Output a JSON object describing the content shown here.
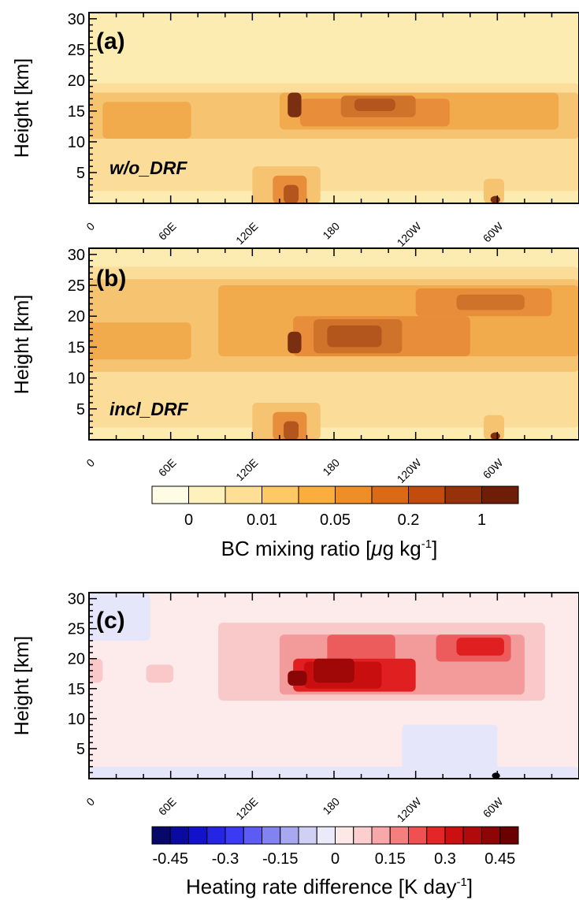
{
  "chart_data": [
    {
      "panel_label": "(a)",
      "annotation": "w/o_DRF",
      "type": "heatmap",
      "ylabel": "Height [km]",
      "yticks": [
        5,
        10,
        15,
        20,
        25,
        30
      ],
      "ylim": [
        0,
        31
      ],
      "xticks": [
        "0",
        "60E",
        "120E",
        "180",
        "120W",
        "60W"
      ],
      "xlim": [
        0,
        360
      ],
      "layers": [
        {
          "x0": 0,
          "x1": 360,
          "y0": 0,
          "y1": 31,
          "level": 2
        },
        {
          "x0": 0,
          "x1": 360,
          "y0": 2,
          "y1": 19.5,
          "level": 3
        },
        {
          "x0": 0,
          "x1": 360,
          "y0": 10.5,
          "y1": 18,
          "level": 4
        },
        {
          "x0": 10,
          "x1": 75,
          "y0": 10.5,
          "y1": 16.5,
          "level": 5
        },
        {
          "x0": 140,
          "x1": 345,
          "y0": 12,
          "y1": 18,
          "level": 5
        },
        {
          "x0": 155,
          "x1": 265,
          "y0": 12.5,
          "y1": 17,
          "level": 6
        },
        {
          "x0": 185,
          "x1": 240,
          "y0": 14,
          "y1": 17.5,
          "level": 7
        },
        {
          "x0": 195,
          "x1": 225,
          "y0": 15,
          "y1": 17,
          "level": 8
        },
        {
          "x0": 146,
          "x1": 156,
          "y0": 14,
          "y1": 18,
          "level": 9
        },
        {
          "x0": 120,
          "x1": 170,
          "y0": 0,
          "y1": 6,
          "level": 4
        },
        {
          "x0": 135,
          "x1": 160,
          "y0": 0,
          "y1": 4.5,
          "level": 6
        },
        {
          "x0": 143,
          "x1": 154,
          "y0": 0,
          "y1": 3,
          "level": 8
        },
        {
          "x0": 290,
          "x1": 305,
          "y0": 0,
          "y1": 4,
          "level": 4
        },
        {
          "x0": 295,
          "x1": 302,
          "y0": 0,
          "y1": 1.2,
          "level": 9
        }
      ]
    },
    {
      "panel_label": "(b)",
      "annotation": "incl_DRF",
      "type": "heatmap",
      "ylabel": "Height [km]",
      "yticks": [
        5,
        10,
        15,
        20,
        25,
        30
      ],
      "ylim": [
        0,
        31
      ],
      "xticks": [
        "0",
        "60E",
        "120E",
        "180",
        "120W",
        "60W"
      ],
      "xlim": [
        0,
        360
      ],
      "layers": [
        {
          "x0": 0,
          "x1": 360,
          "y0": 0,
          "y1": 31,
          "level": 2
        },
        {
          "x0": 0,
          "x1": 360,
          "y0": 2,
          "y1": 28,
          "level": 3
        },
        {
          "x0": 0,
          "x1": 360,
          "y0": 11,
          "y1": 26,
          "level": 4
        },
        {
          "x0": 0,
          "x1": 75,
          "y0": 13,
          "y1": 19,
          "level": 5
        },
        {
          "x0": 95,
          "x1": 360,
          "y0": 13.5,
          "y1": 25,
          "level": 5
        },
        {
          "x0": 150,
          "x1": 280,
          "y0": 13.5,
          "y1": 20,
          "level": 6
        },
        {
          "x0": 240,
          "x1": 340,
          "y0": 20,
          "y1": 24.5,
          "level": 6
        },
        {
          "x0": 270,
          "x1": 320,
          "y0": 21,
          "y1": 23.5,
          "level": 7
        },
        {
          "x0": 165,
          "x1": 230,
          "y0": 14,
          "y1": 19.5,
          "level": 7
        },
        {
          "x0": 175,
          "x1": 215,
          "y0": 15,
          "y1": 18.5,
          "level": 8
        },
        {
          "x0": 146,
          "x1": 156,
          "y0": 14,
          "y1": 17.5,
          "level": 9
        },
        {
          "x0": 120,
          "x1": 170,
          "y0": 0,
          "y1": 6,
          "level": 4
        },
        {
          "x0": 135,
          "x1": 160,
          "y0": 0,
          "y1": 4.5,
          "level": 6
        },
        {
          "x0": 143,
          "x1": 154,
          "y0": 0,
          "y1": 3,
          "level": 8
        },
        {
          "x0": 290,
          "x1": 305,
          "y0": 0,
          "y1": 4,
          "level": 4
        },
        {
          "x0": 295,
          "x1": 302,
          "y0": 0,
          "y1": 1.2,
          "level": 9
        }
      ]
    },
    {
      "panel_label": "(c)",
      "annotation": "",
      "type": "heatmap",
      "ylabel": "Height [km]",
      "yticks": [
        5,
        10,
        15,
        20,
        25,
        30
      ],
      "ylim": [
        0,
        31
      ],
      "xticks": [
        "0",
        "60E",
        "120E",
        "180",
        "120W",
        "60W"
      ],
      "xlim": [
        0,
        360
      ],
      "layers": [
        {
          "x0": 0,
          "x1": 360,
          "y0": 0,
          "y1": 31,
          "level": 9
        },
        {
          "x0": 0,
          "x1": 360,
          "y0": 0,
          "y1": 2,
          "level": 8
        },
        {
          "x0": 230,
          "x1": 300,
          "y0": 1,
          "y1": 9,
          "level": 8
        },
        {
          "x0": 0,
          "x1": 45,
          "y0": 23,
          "y1": 31,
          "level": 8
        },
        {
          "x0": 95,
          "x1": 335,
          "y0": 13,
          "y1": 26,
          "level": 10
        },
        {
          "x0": 0,
          "x1": 10,
          "y0": 16,
          "y1": 20,
          "level": 10
        },
        {
          "x0": 42,
          "x1": 62,
          "y0": 16,
          "y1": 19,
          "level": 10
        },
        {
          "x0": 140,
          "x1": 320,
          "y0": 14,
          "y1": 24,
          "level": 11
        },
        {
          "x0": 175,
          "x1": 225,
          "y0": 19,
          "y1": 24,
          "level": 12
        },
        {
          "x0": 255,
          "x1": 310,
          "y0": 19.5,
          "y1": 24,
          "level": 12
        },
        {
          "x0": 150,
          "x1": 240,
          "y0": 14.5,
          "y1": 20,
          "level": 13
        },
        {
          "x0": 270,
          "x1": 305,
          "y0": 20.5,
          "y1": 23.5,
          "level": 13
        },
        {
          "x0": 158,
          "x1": 215,
          "y0": 15,
          "y1": 19.5,
          "level": 14
        },
        {
          "x0": 165,
          "x1": 195,
          "y0": 16,
          "y1": 20,
          "level": 15
        },
        {
          "x0": 146,
          "x1": 160,
          "y0": 15.5,
          "y1": 18,
          "level": 16
        },
        {
          "x0": 296,
          "x1": 302,
          "y0": 0,
          "y1": 1,
          "level": 17
        }
      ]
    }
  ],
  "colorbars": [
    {
      "title": "BC mixing ratio [",
      "mu": "μ",
      "title_rest": "g kg",
      "sup": "-1",
      "close": "]",
      "colors": [
        "#fffce6",
        "#fff1bc",
        "#ffdf95",
        "#fec964",
        "#fbad3d",
        "#ef8d26",
        "#db6a16",
        "#c14c0d",
        "#963109",
        "#6e1d06"
      ],
      "labels": [
        "0",
        "0.01",
        "0.05",
        "0.2",
        "1"
      ],
      "label_boundaries": [
        1,
        3,
        5,
        7,
        9
      ]
    },
    {
      "title": "Heating rate difference [K day",
      "sup": "-1",
      "close": "]",
      "colors": [
        "#08086b",
        "#0a0aa0",
        "#1212cc",
        "#2525e6",
        "#3b3bf5",
        "#5c5cf5",
        "#8282f0",
        "#a8a8f0",
        "#d0d0f5",
        "#eaeafa",
        "#fde8e8",
        "#fbcfcf",
        "#f8a8a8",
        "#f57e7e",
        "#f05050",
        "#e52626",
        "#cc1010",
        "#b00a0a",
        "#8e0505",
        "#6a0000"
      ],
      "labels": [
        "-0.45",
        "-0.3",
        "-0.15",
        "0",
        "0.15",
        "0.3",
        "0.45"
      ],
      "label_boundaries": [
        1,
        4,
        7,
        10,
        13,
        16,
        19
      ]
    }
  ],
  "heat_palette": [
    "#fffbe4",
    "#fff4c8",
    "#fdecb2",
    "#fbdc98",
    "#f6c370",
    "#f1ab4c",
    "#e88e3a",
    "#d0732a",
    "#b3561e",
    "#7a2e12",
    "#e8e8fb",
    "#fde6e6",
    "#f9c8c8",
    "#f39b9b",
    "#ec5c5c",
    "#e02020",
    "#c80e0e",
    "#a00808",
    "#000000"
  ]
}
